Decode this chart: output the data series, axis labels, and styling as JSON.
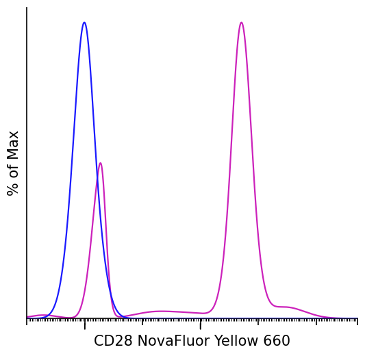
{
  "title": "",
  "xlabel": "CD28 NovaFluor Yellow 660",
  "ylabel": "% of Max",
  "xlabel_fontsize": 15,
  "ylabel_fontsize": 15,
  "background_color": "#ffffff",
  "blue_color": "#1a1aff",
  "pink_color": "#cc22bb",
  "linewidth": 1.6,
  "ylim": [
    0,
    1.05
  ],
  "xlim": [
    0,
    1.0
  ]
}
